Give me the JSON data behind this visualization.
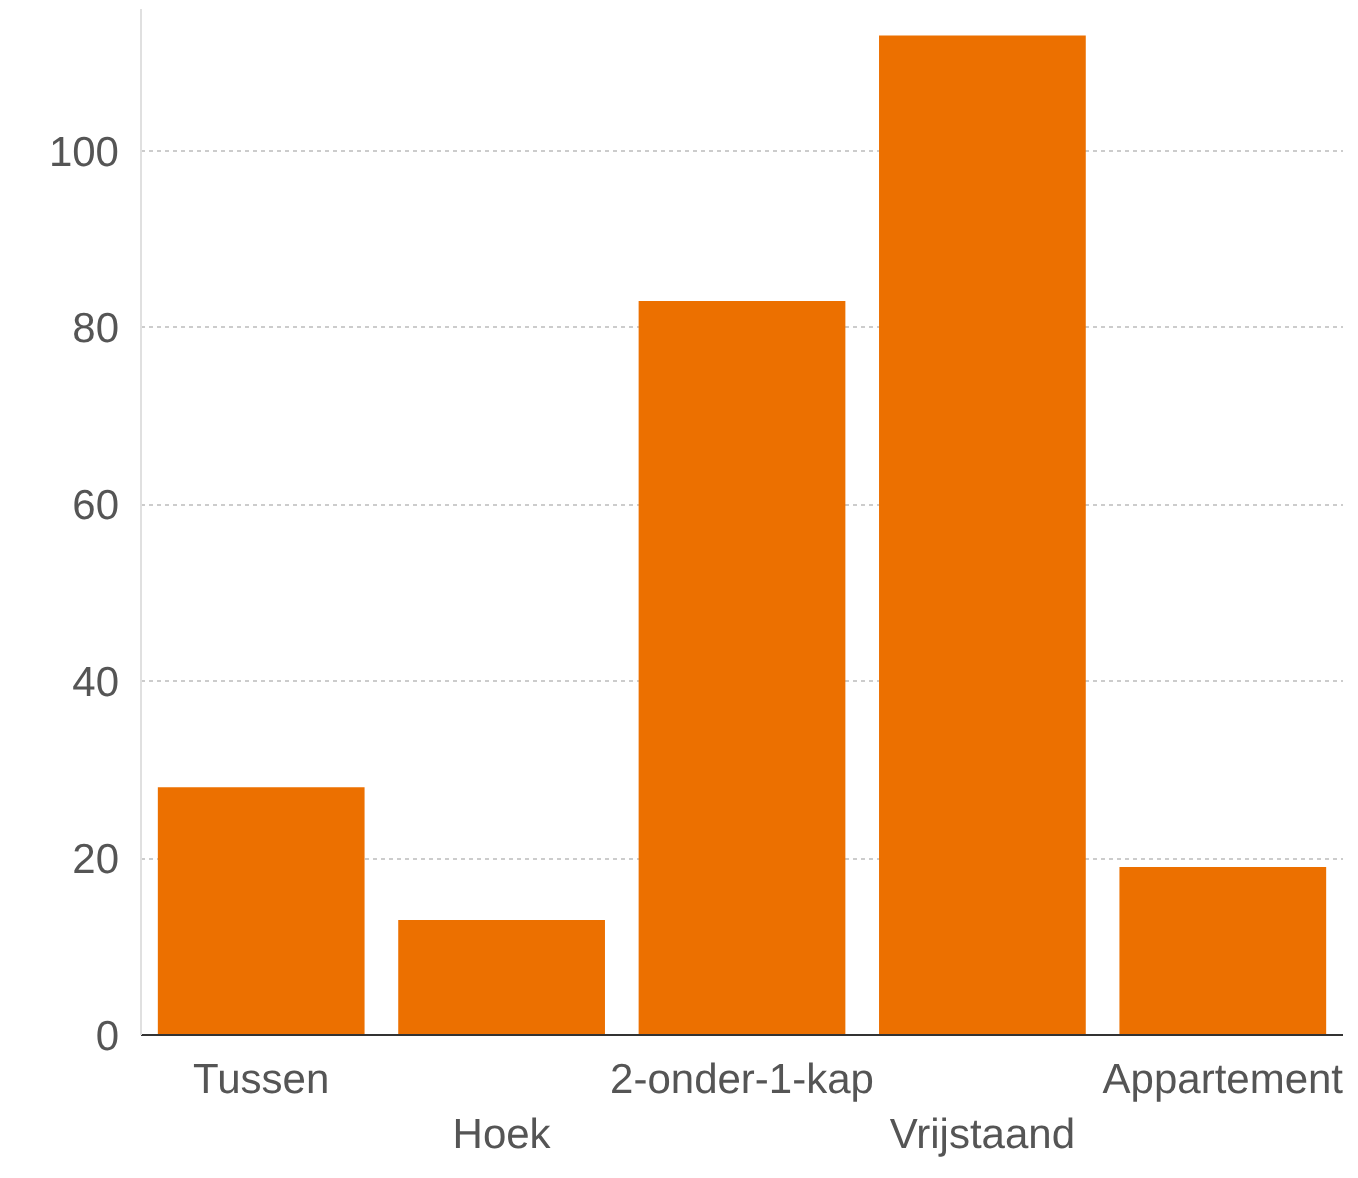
{
  "chart_data": {
    "type": "bar",
    "categories": [
      "Tussen",
      "Hoek",
      "2-onder-1-kap",
      "Vrijstaand",
      "Appartement"
    ],
    "values": [
      28,
      13,
      83,
      113,
      19
    ],
    "color": "#ec7000",
    "ylim": [
      0,
      116
    ],
    "yticks": [
      0,
      20,
      40,
      60,
      80,
      100
    ],
    "grid": "y"
  }
}
